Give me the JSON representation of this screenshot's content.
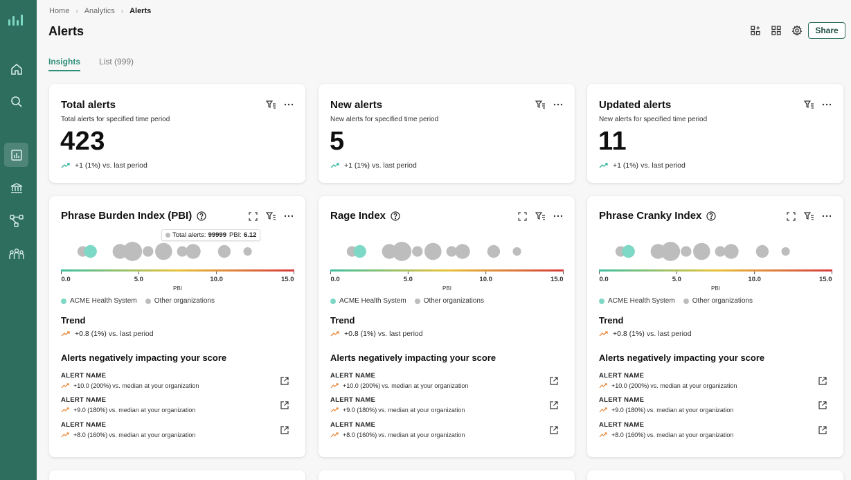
{
  "app": {
    "logo_icon": "bar-chart-logo-icon"
  },
  "sidebar": {
    "items": [
      {
        "name": "home",
        "icon": "home-icon",
        "active": false
      },
      {
        "name": "search",
        "icon": "search-icon",
        "active": false
      },
      {
        "name": "analytics",
        "icon": "analytics-icon",
        "active": true
      },
      {
        "name": "institution",
        "icon": "bank-icon",
        "active": false
      },
      {
        "name": "network",
        "icon": "network-icon",
        "active": false
      },
      {
        "name": "people",
        "icon": "people-icon",
        "active": false
      }
    ]
  },
  "breadcrumb": {
    "items": [
      "Home",
      "Analytics",
      "Alerts"
    ]
  },
  "page": {
    "title": "Alerts"
  },
  "toolbar": {
    "share_label": "Share"
  },
  "tabs": [
    {
      "label": "Insights",
      "active": true
    },
    {
      "label": "List (999)",
      "active": false
    }
  ],
  "colors": {
    "accent": "#2e8f78",
    "sidebar": "#2e6e5f",
    "acme_bubble": "#7ed8c6",
    "other_bubble": "#bdbdbd",
    "trend_up_green": "#2fb59a",
    "trend_up_orange": "#e8893a"
  },
  "summary_cards": [
    {
      "title": "Total alerts",
      "subtitle": "Total alerts for specified time period",
      "value": "423",
      "delta_value": "+1 (1%)",
      "delta_text": "vs. last period"
    },
    {
      "title": "New alerts",
      "subtitle": "New alerts for specified time period",
      "value": "5",
      "delta_value": "+1 (1%)",
      "delta_text": "vs. last period"
    },
    {
      "title": "Updated alerts",
      "subtitle": "New alerts for specified time period",
      "value": "11",
      "delta_value": "+1 (1%)",
      "delta_text": "vs. last period"
    }
  ],
  "index_cards": [
    {
      "title": "Phrase Burden Index (PBI)",
      "tooltip": {
        "label": "Total alerts:",
        "value": "99999",
        "metric_label": "PBI:",
        "metric_value": "6.12"
      },
      "trend_title": "Trend",
      "trend_value": "+0.8 (1%)",
      "trend_text": "vs. last period",
      "neg_title": "Alerts negatively impacting your score",
      "alerts": [
        {
          "name": "ALERT NAME",
          "delta": "+10.0 (200%)",
          "text": "vs. median at your organization"
        },
        {
          "name": "ALERT NAME",
          "delta": "+9.0 (180%)",
          "text": "vs. median at your organization"
        },
        {
          "name": "ALERT NAME",
          "delta": "+8.0 (160%)",
          "text": "vs. median at your organization"
        }
      ]
    },
    {
      "title": "Rage Index",
      "trend_title": "Trend",
      "trend_value": "+0.8 (1%)",
      "trend_text": "vs. last period",
      "neg_title": "Alerts negatively impacting your score",
      "alerts": [
        {
          "name": "ALERT NAME",
          "delta": "+10.0 (200%)",
          "text": "vs. median at your organization"
        },
        {
          "name": "ALERT NAME",
          "delta": "+9.0 (180%)",
          "text": "vs. median at your organization"
        },
        {
          "name": "ALERT NAME",
          "delta": "+8.0 (160%)",
          "text": "vs. median at your organization"
        }
      ]
    },
    {
      "title": "Phrase Cranky Index",
      "trend_title": "Trend",
      "trend_value": "+0.8 (1%)",
      "trend_text": "vs. last period",
      "neg_title": "Alerts negatively impacting your score",
      "alerts": [
        {
          "name": "ALERT NAME",
          "delta": "+10.0 (200%)",
          "text": "vs. median at your organization"
        },
        {
          "name": "ALERT NAME",
          "delta": "+9.0 (180%)",
          "text": "vs. median at your organization"
        },
        {
          "name": "ALERT NAME",
          "delta": "+8.0 (160%)",
          "text": "vs. median at your organization"
        }
      ]
    }
  ],
  "bubble_chart": {
    "axis_label": "PBI",
    "ticks": [
      "0.0",
      "5.0",
      "10.0",
      "15.0"
    ],
    "xlim": [
      0,
      15
    ],
    "legend": [
      "ACME Health System",
      "Other organizations"
    ],
    "points": [
      {
        "x": 1.4,
        "size": 3,
        "org": "other"
      },
      {
        "x": 1.9,
        "size": 4,
        "org": "acme"
      },
      {
        "x": 3.8,
        "size": 5,
        "org": "other"
      },
      {
        "x": 4.6,
        "size": 7,
        "org": "other"
      },
      {
        "x": 5.6,
        "size": 3,
        "org": "other"
      },
      {
        "x": 6.6,
        "size": 6,
        "org": "other"
      },
      {
        "x": 7.8,
        "size": 3,
        "org": "other"
      },
      {
        "x": 8.5,
        "size": 5,
        "org": "other"
      },
      {
        "x": 10.5,
        "size": 4,
        "org": "other"
      },
      {
        "x": 12.0,
        "size": 2,
        "org": "other"
      }
    ]
  }
}
